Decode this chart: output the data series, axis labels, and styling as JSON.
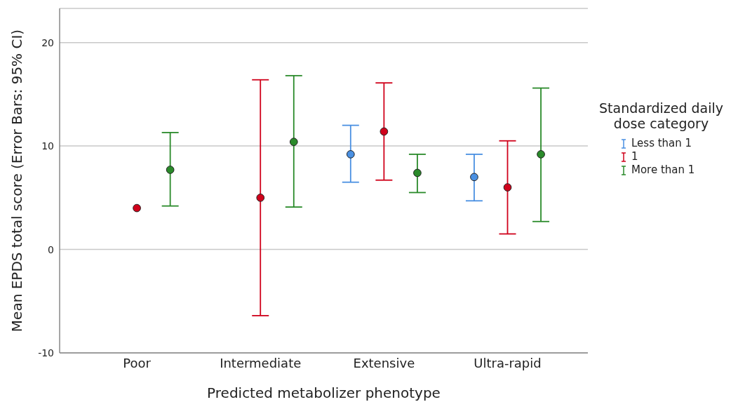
{
  "chart_data": {
    "type": "scatter",
    "xlabel": "Predicted metabolizer phenotype",
    "ylabel": "Mean EPDS total score (Error Bars: 95% CI)",
    "legend_title": "Standardized daily dose category",
    "categories": [
      "Poor",
      "Intermediate",
      "Extensive",
      "Ultra-rapid"
    ],
    "series": [
      {
        "name": "Less than 1",
        "color": "#4a90e2",
        "values": [
          null,
          null,
          9.2,
          7.0
        ],
        "errors": [
          null,
          null,
          [
            6.5,
            12.0
          ],
          [
            4.7,
            9.2
          ]
        ]
      },
      {
        "name": "1",
        "color": "#d0021b",
        "values": [
          4.0,
          5.0,
          11.4,
          6.0
        ],
        "errors": [
          null,
          [
            -6.4,
            16.4
          ],
          [
            6.7,
            16.1
          ],
          [
            1.5,
            10.5
          ]
        ]
      },
      {
        "name": "More than 1",
        "color": "#2a8a2a",
        "values": [
          7.7,
          10.4,
          7.4,
          9.2
        ],
        "errors": [
          [
            4.2,
            11.3
          ],
          [
            4.1,
            16.8
          ],
          [
            5.5,
            9.2
          ],
          [
            2.7,
            15.6
          ]
        ]
      }
    ],
    "ylim": [
      -10,
      23.3
    ],
    "yticks": [
      -10,
      0,
      10,
      20
    ],
    "grid": "y",
    "legend": "right",
    "marker": "circle"
  }
}
